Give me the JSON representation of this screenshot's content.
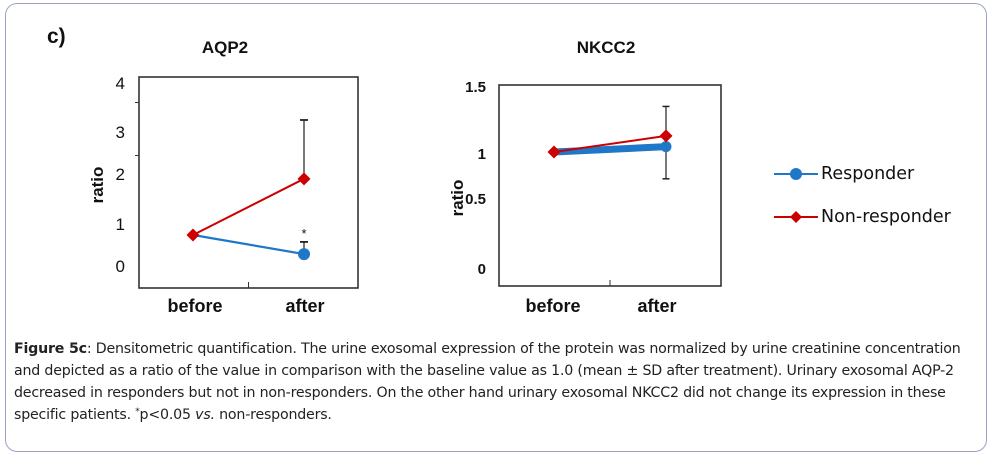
{
  "panel_label": "c)",
  "legend": {
    "items": [
      {
        "label": "Responder",
        "color": "#1f77c8",
        "marker": "circle"
      },
      {
        "label": "Non-responder",
        "color": "#cc0000",
        "marker": "diamond"
      }
    ]
  },
  "caption": {
    "figure_label": "Figure 5c",
    "text_before_sup": ": Densitometric quantification. The urine exosomal expression of the protein was normalized by urine creatinine concentration and depicted as a ratio of the value in comparison with the baseline value as 1.0 (mean ± SD after treatment). Urinary exosomal AQP-2 decreased in responders but not in non-responders. On the other hand urinary exosomal NKCC2 did not change its expression in these specific patients. ",
    "sup": "*",
    "text_after_sup": "p<0.05 ",
    "italic": "vs.",
    "text_end": " non-responders."
  },
  "colors": {
    "responder": "#1f77c8",
    "non_responder": "#cc0000",
    "error_bar": "#222222",
    "axis": "#333333"
  },
  "chart_data": [
    {
      "type": "line",
      "title": "AQP2",
      "xlabel": "",
      "ylabel": "ratio",
      "categories": [
        "before",
        "after"
      ],
      "ylim": [
        0,
        4
      ],
      "yticks": [
        0,
        1,
        2,
        3,
        4
      ],
      "grid": false,
      "legend": "right",
      "series": [
        {
          "name": "Responder",
          "values": [
            1.0,
            0.64
          ],
          "error_upper": [
            null,
            0.23
          ],
          "annotation": {
            "index": 1,
            "text": "*"
          }
        },
        {
          "name": "Non-responder",
          "values": [
            1.0,
            2.06
          ],
          "error_upper": [
            null,
            1.11
          ]
        }
      ]
    },
    {
      "type": "line",
      "title": "NKCC2",
      "xlabel": "",
      "ylabel": "ratio",
      "categories": [
        "before",
        "after"
      ],
      "ylim": [
        0,
        1.5
      ],
      "yticks": [
        0,
        0.5,
        1,
        1.5
      ],
      "grid": false,
      "legend": "right",
      "series": [
        {
          "name": "Responder",
          "values": [
            1.0,
            1.04
          ]
        },
        {
          "name": "Non-responder",
          "values": [
            1.0,
            1.12
          ],
          "error_range": [
            0.8,
            1.34
          ]
        }
      ]
    }
  ]
}
